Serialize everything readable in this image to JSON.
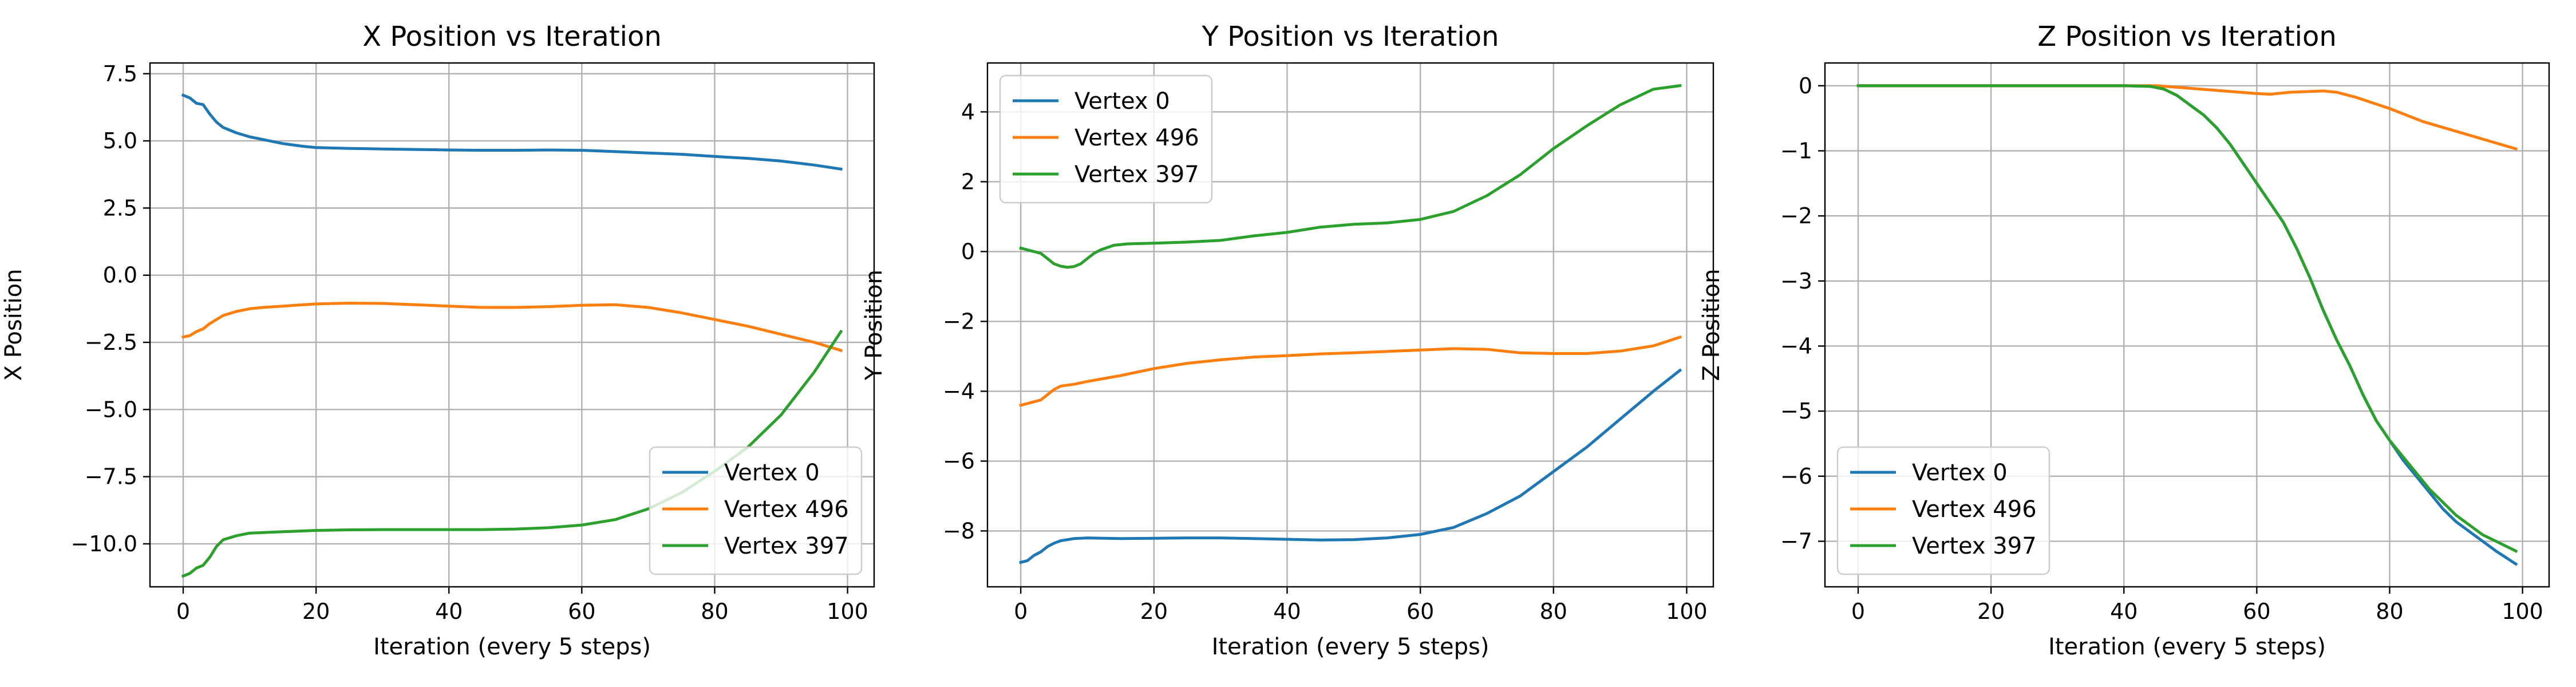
{
  "chart_data": [
    {
      "type": "line",
      "title": "X Position vs Iteration",
      "xlabel": "Iteration (every 5 steps)",
      "ylabel": "X Position",
      "xlim": [
        -5,
        104
      ],
      "ylim": [
        -11.6,
        7.9
      ],
      "xticks": [
        0,
        20,
        40,
        60,
        80,
        100
      ],
      "yticks": [
        7.5,
        5.0,
        2.5,
        0.0,
        -2.5,
        -5.0,
        -7.5,
        -10.0
      ],
      "ytick_labels": [
        "7.5",
        "5.0",
        "2.5",
        "0.0",
        "−2.5",
        "−5.0",
        "−7.5",
        "−10.0"
      ],
      "grid": true,
      "legend_position": "lower-right",
      "series": [
        {
          "name": "Vertex 0",
          "color": "#1f77b4",
          "points": [
            [
              0,
              6.7
            ],
            [
              1,
              6.6
            ],
            [
              2,
              6.4
            ],
            [
              3,
              6.35
            ],
            [
              4,
              6.0
            ],
            [
              5,
              5.7
            ],
            [
              6,
              5.5
            ],
            [
              8,
              5.3
            ],
            [
              10,
              5.15
            ],
            [
              12,
              5.05
            ],
            [
              15,
              4.9
            ],
            [
              18,
              4.8
            ],
            [
              20,
              4.75
            ],
            [
              25,
              4.72
            ],
            [
              30,
              4.7
            ],
            [
              35,
              4.68
            ],
            [
              40,
              4.66
            ],
            [
              45,
              4.65
            ],
            [
              50,
              4.65
            ],
            [
              55,
              4.66
            ],
            [
              60,
              4.65
            ],
            [
              65,
              4.6
            ],
            [
              70,
              4.55
            ],
            [
              75,
              4.5
            ],
            [
              80,
              4.42
            ],
            [
              85,
              4.35
            ],
            [
              90,
              4.25
            ],
            [
              95,
              4.1
            ],
            [
              99,
              3.95
            ]
          ]
        },
        {
          "name": "Vertex 496",
          "color": "#ff7f0e",
          "points": [
            [
              0,
              -2.3
            ],
            [
              1,
              -2.25
            ],
            [
              2,
              -2.1
            ],
            [
              3,
              -2.0
            ],
            [
              4,
              -1.8
            ],
            [
              5,
              -1.65
            ],
            [
              6,
              -1.5
            ],
            [
              8,
              -1.35
            ],
            [
              10,
              -1.25
            ],
            [
              12,
              -1.2
            ],
            [
              15,
              -1.15
            ],
            [
              20,
              -1.07
            ],
            [
              25,
              -1.04
            ],
            [
              30,
              -1.05
            ],
            [
              35,
              -1.1
            ],
            [
              40,
              -1.15
            ],
            [
              45,
              -1.2
            ],
            [
              50,
              -1.2
            ],
            [
              55,
              -1.17
            ],
            [
              60,
              -1.12
            ],
            [
              65,
              -1.1
            ],
            [
              70,
              -1.2
            ],
            [
              75,
              -1.4
            ],
            [
              80,
              -1.65
            ],
            [
              85,
              -1.9
            ],
            [
              90,
              -2.2
            ],
            [
              95,
              -2.5
            ],
            [
              99,
              -2.8
            ]
          ]
        },
        {
          "name": "Vertex 397",
          "color": "#2ca02c",
          "points": [
            [
              0,
              -11.2
            ],
            [
              1,
              -11.1
            ],
            [
              2,
              -10.9
            ],
            [
              3,
              -10.8
            ],
            [
              4,
              -10.5
            ],
            [
              5,
              -10.1
            ],
            [
              6,
              -9.85
            ],
            [
              8,
              -9.7
            ],
            [
              10,
              -9.6
            ],
            [
              15,
              -9.55
            ],
            [
              20,
              -9.5
            ],
            [
              25,
              -9.48
            ],
            [
              30,
              -9.47
            ],
            [
              35,
              -9.47
            ],
            [
              40,
              -9.47
            ],
            [
              45,
              -9.47
            ],
            [
              50,
              -9.45
            ],
            [
              55,
              -9.4
            ],
            [
              60,
              -9.3
            ],
            [
              65,
              -9.1
            ],
            [
              70,
              -8.7
            ],
            [
              75,
              -8.1
            ],
            [
              80,
              -7.3
            ],
            [
              85,
              -6.4
            ],
            [
              90,
              -5.2
            ],
            [
              95,
              -3.6
            ],
            [
              99,
              -2.1
            ]
          ]
        }
      ]
    },
    {
      "type": "line",
      "title": "Y Position vs Iteration",
      "xlabel": "Iteration (every 5 steps)",
      "ylabel": "Y Position",
      "xlim": [
        -5,
        104
      ],
      "ylim": [
        -9.6,
        5.4
      ],
      "xticks": [
        0,
        20,
        40,
        60,
        80,
        100
      ],
      "yticks": [
        4,
        2,
        0,
        -2,
        -4,
        -6,
        -8
      ],
      "ytick_labels": [
        "4",
        "2",
        "0",
        "−2",
        "−4",
        "−6",
        "−8"
      ],
      "grid": true,
      "legend_position": "upper-left",
      "series": [
        {
          "name": "Vertex 0",
          "color": "#1f77b4",
          "points": [
            [
              0,
              -8.9
            ],
            [
              1,
              -8.85
            ],
            [
              2,
              -8.7
            ],
            [
              3,
              -8.6
            ],
            [
              4,
              -8.45
            ],
            [
              5,
              -8.35
            ],
            [
              6,
              -8.28
            ],
            [
              8,
              -8.22
            ],
            [
              10,
              -8.2
            ],
            [
              15,
              -8.22
            ],
            [
              20,
              -8.21
            ],
            [
              25,
              -8.2
            ],
            [
              30,
              -8.2
            ],
            [
              35,
              -8.22
            ],
            [
              40,
              -8.24
            ],
            [
              45,
              -8.26
            ],
            [
              50,
              -8.25
            ],
            [
              55,
              -8.2
            ],
            [
              60,
              -8.1
            ],
            [
              65,
              -7.9
            ],
            [
              70,
              -7.5
            ],
            [
              75,
              -7.0
            ],
            [
              80,
              -6.3
            ],
            [
              85,
              -5.6
            ],
            [
              90,
              -4.8
            ],
            [
              95,
              -4.0
            ],
            [
              99,
              -3.4
            ]
          ]
        },
        {
          "name": "Vertex 496",
          "color": "#ff7f0e",
          "points": [
            [
              0,
              -4.4
            ],
            [
              1,
              -4.35
            ],
            [
              2,
              -4.3
            ],
            [
              3,
              -4.25
            ],
            [
              4,
              -4.1
            ],
            [
              5,
              -3.95
            ],
            [
              6,
              -3.85
            ],
            [
              8,
              -3.8
            ],
            [
              10,
              -3.72
            ],
            [
              15,
              -3.55
            ],
            [
              20,
              -3.35
            ],
            [
              25,
              -3.2
            ],
            [
              30,
              -3.1
            ],
            [
              35,
              -3.02
            ],
            [
              40,
              -2.98
            ],
            [
              45,
              -2.93
            ],
            [
              50,
              -2.9
            ],
            [
              55,
              -2.86
            ],
            [
              60,
              -2.82
            ],
            [
              65,
              -2.78
            ],
            [
              70,
              -2.8
            ],
            [
              75,
              -2.9
            ],
            [
              80,
              -2.92
            ],
            [
              85,
              -2.92
            ],
            [
              90,
              -2.85
            ],
            [
              95,
              -2.7
            ],
            [
              99,
              -2.45
            ]
          ]
        },
        {
          "name": "Vertex 397",
          "color": "#2ca02c",
          "points": [
            [
              0,
              0.1
            ],
            [
              1,
              0.05
            ],
            [
              2,
              0.0
            ],
            [
              3,
              -0.05
            ],
            [
              4,
              -0.2
            ],
            [
              5,
              -0.35
            ],
            [
              6,
              -0.42
            ],
            [
              7,
              -0.45
            ],
            [
              8,
              -0.43
            ],
            [
              9,
              -0.35
            ],
            [
              10,
              -0.2
            ],
            [
              11,
              -0.05
            ],
            [
              12,
              0.05
            ],
            [
              14,
              0.18
            ],
            [
              16,
              0.22
            ],
            [
              20,
              0.24
            ],
            [
              25,
              0.27
            ],
            [
              30,
              0.32
            ],
            [
              35,
              0.45
            ],
            [
              40,
              0.55
            ],
            [
              45,
              0.7
            ],
            [
              50,
              0.78
            ],
            [
              55,
              0.82
            ],
            [
              60,
              0.92
            ],
            [
              65,
              1.15
            ],
            [
              70,
              1.6
            ],
            [
              75,
              2.2
            ],
            [
              80,
              2.95
            ],
            [
              85,
              3.6
            ],
            [
              90,
              4.2
            ],
            [
              95,
              4.65
            ],
            [
              99,
              4.75
            ]
          ]
        }
      ]
    },
    {
      "type": "line",
      "title": "Z Position vs Iteration",
      "xlabel": "Iteration (every 5 steps)",
      "ylabel": "Z Position",
      "xlim": [
        -5,
        104
      ],
      "ylim": [
        -7.7,
        0.35
      ],
      "xticks": [
        0,
        20,
        40,
        60,
        80,
        100
      ],
      "yticks": [
        0,
        -1,
        -2,
        -3,
        -4,
        -5,
        -6,
        -7
      ],
      "ytick_labels": [
        "0",
        "−1",
        "−2",
        "−3",
        "−4",
        "−5",
        "−6",
        "−7"
      ],
      "grid": true,
      "legend_position": "lower-left",
      "series": [
        {
          "name": "Vertex 0",
          "color": "#1f77b4",
          "points": [
            [
              0,
              0
            ],
            [
              10,
              0
            ],
            [
              20,
              0
            ],
            [
              30,
              0
            ],
            [
              40,
              0
            ],
            [
              44,
              -0.01
            ],
            [
              46,
              -0.05
            ],
            [
              48,
              -0.15
            ],
            [
              50,
              -0.3
            ],
            [
              52,
              -0.45
            ],
            [
              54,
              -0.65
            ],
            [
              56,
              -0.9
            ],
            [
              58,
              -1.2
            ],
            [
              60,
              -1.5
            ],
            [
              62,
              -1.8
            ],
            [
              64,
              -2.1
            ],
            [
              66,
              -2.5
            ],
            [
              68,
              -2.95
            ],
            [
              70,
              -3.45
            ],
            [
              72,
              -3.9
            ],
            [
              74,
              -4.3
            ],
            [
              76,
              -4.75
            ],
            [
              78,
              -5.15
            ],
            [
              80,
              -5.45
            ],
            [
              82,
              -5.75
            ],
            [
              84,
              -6.0
            ],
            [
              86,
              -6.25
            ],
            [
              88,
              -6.5
            ],
            [
              90,
              -6.7
            ],
            [
              92,
              -6.85
            ],
            [
              94,
              -7.0
            ],
            [
              96,
              -7.15
            ],
            [
              99,
              -7.35
            ]
          ]
        },
        {
          "name": "Vertex 496",
          "color": "#ff7f0e",
          "points": [
            [
              0,
              0
            ],
            [
              10,
              0
            ],
            [
              20,
              0
            ],
            [
              30,
              0
            ],
            [
              40,
              0
            ],
            [
              45,
              0
            ],
            [
              50,
              -0.04
            ],
            [
              55,
              -0.08
            ],
            [
              60,
              -0.12
            ],
            [
              62,
              -0.13
            ],
            [
              65,
              -0.1
            ],
            [
              70,
              -0.08
            ],
            [
              72,
              -0.1
            ],
            [
              75,
              -0.18
            ],
            [
              80,
              -0.35
            ],
            [
              85,
              -0.55
            ],
            [
              90,
              -0.7
            ],
            [
              95,
              -0.85
            ],
            [
              99,
              -0.97
            ]
          ]
        },
        {
          "name": "Vertex 397",
          "color": "#2ca02c",
          "points": [
            [
              0,
              0
            ],
            [
              10,
              0
            ],
            [
              20,
              0
            ],
            [
              30,
              0
            ],
            [
              40,
              0
            ],
            [
              44,
              -0.01
            ],
            [
              46,
              -0.05
            ],
            [
              48,
              -0.15
            ],
            [
              50,
              -0.3
            ],
            [
              52,
              -0.45
            ],
            [
              54,
              -0.65
            ],
            [
              56,
              -0.9
            ],
            [
              58,
              -1.2
            ],
            [
              60,
              -1.5
            ],
            [
              62,
              -1.8
            ],
            [
              64,
              -2.1
            ],
            [
              66,
              -2.5
            ],
            [
              68,
              -2.95
            ],
            [
              70,
              -3.45
            ],
            [
              72,
              -3.9
            ],
            [
              74,
              -4.3
            ],
            [
              76,
              -4.75
            ],
            [
              78,
              -5.15
            ],
            [
              80,
              -5.45
            ],
            [
              82,
              -5.7
            ],
            [
              84,
              -5.95
            ],
            [
              86,
              -6.2
            ],
            [
              88,
              -6.4
            ],
            [
              90,
              -6.6
            ],
            [
              92,
              -6.75
            ],
            [
              94,
              -6.9
            ],
            [
              96,
              -7.0
            ],
            [
              99,
              -7.15
            ]
          ]
        }
      ]
    }
  ]
}
